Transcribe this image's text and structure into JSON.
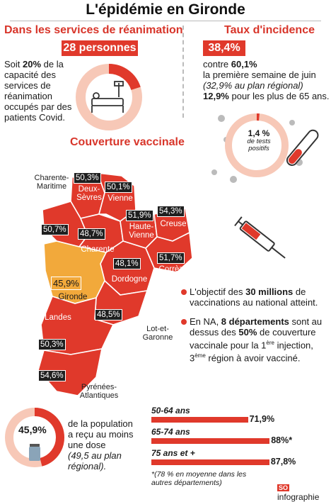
{
  "title": "L'épidémie en Gironde",
  "reanimation": {
    "heading": "Dans les services de réanimation",
    "count": "28 personnes",
    "text_pre": "Soit ",
    "pct": "20%",
    "text_post": "de la capacité des services de réanimation occupés par des patients Covid.",
    "donut_fraction": 0.2
  },
  "incidence": {
    "heading": "Taux d'incidence",
    "rate": "38,4%",
    "line1_pre": "contre ",
    "line1_val": "60,1%",
    "line2": "la première semaine de juin",
    "line3": "(32,9% au plan régional)",
    "line4_val": "12,9%",
    "line4_post": " pour les plus de 65 ans.",
    "tests_pct": "1,4 %",
    "tests_label": "de tests positifs",
    "donut_fraction": 0.014
  },
  "vaccination": {
    "heading": "Couverture vaccinale",
    "departments": [
      {
        "name": "Charente-Maritime",
        "value": "50,7%"
      },
      {
        "name": "Deux-Sèvres",
        "value": "50,3%"
      },
      {
        "name": "Vienne",
        "value": "50,1%"
      },
      {
        "name": "Haute-Vienne",
        "value": "51,9%"
      },
      {
        "name": "Creuse",
        "value": "54,3%"
      },
      {
        "name": "Charente",
        "value": "48,7%"
      },
      {
        "name": "Corrèze",
        "value": "51,7%"
      },
      {
        "name": "Dordogne",
        "value": "48,1%"
      },
      {
        "name": "Gironde",
        "value": "45,9%"
      },
      {
        "name": "Lot-et-Garonne",
        "value": "48,5%"
      },
      {
        "name": "Landes",
        "value": "50,3%"
      },
      {
        "name": "Pyrénées-Atlantiques",
        "value": "54,6%"
      }
    ],
    "note1_pre": "L'objectif des ",
    "note1_bold": "30 millions",
    "note1_post": " de vaccinations au national atteint.",
    "note2_pre": "En NA, ",
    "note2_bold1": "8 départements",
    "note2_mid": " sont au dessus des ",
    "note2_bold2": "50%",
    "note2_mid2": " de couverture vaccinale pour la 1",
    "note2_sup1": "ère",
    "note2_mid3": " injection, 3",
    "note2_sup2": "ème",
    "note2_post": " région à avoir vacciné."
  },
  "population": {
    "pct": "45,9%",
    "donut_fraction": 0.459,
    "text": "de la population a reçu au moins une dose",
    "note": "(49,5 au plan régional)."
  },
  "chart_data": {
    "type": "bar",
    "categories": [
      "50-64 ans",
      "65-74 ans",
      "75 ans et +"
    ],
    "values": [
      71.9,
      88,
      87.8
    ],
    "labels": [
      "71,9%",
      "88%*",
      "87,8%"
    ],
    "xlim": [
      0,
      100
    ],
    "annotation": "*(78 % en moyenne dans les autres départements)"
  },
  "footer": {
    "brand_logo": "SO",
    "brand": "infographie"
  },
  "colors": {
    "red": "#e0392b",
    "light": "#f7c8b7",
    "orange": "#f2a93b",
    "dark": "#1f1f1f"
  }
}
